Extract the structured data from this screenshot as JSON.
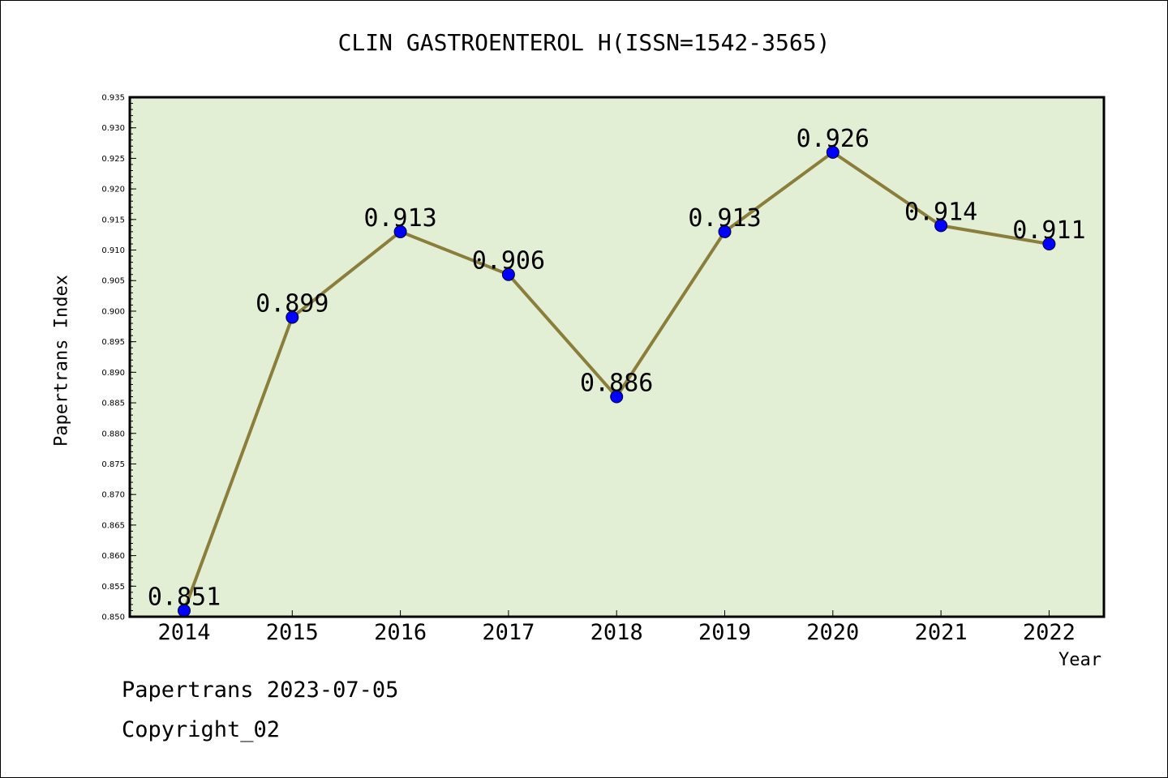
{
  "header": {
    "title": "CLIN GASTROENTEROL H(ISSN=1542-3565)"
  },
  "footer": {
    "line1": "Papertrans 2023-07-05",
    "line2": "Copyright_02"
  },
  "colors": {
    "plot_bg": "#e2efd5",
    "line": "#8b7d3a",
    "marker": "#0000ff",
    "frame": "#000000"
  },
  "chart_data": {
    "type": "line",
    "title": "CLIN GASTROENTEROL H(ISSN=1542-3565)",
    "xlabel": "Year",
    "ylabel": "Papertrans Index",
    "categories": [
      "2014",
      "2015",
      "2016",
      "2017",
      "2018",
      "2019",
      "2020",
      "2021",
      "2022"
    ],
    "values": [
      0.851,
      0.899,
      0.913,
      0.906,
      0.886,
      0.913,
      0.926,
      0.914,
      0.911
    ],
    "data_labels": [
      "0.851",
      "0.899",
      "0.913",
      "0.906",
      "0.886",
      "0.913",
      "0.926",
      "0.914",
      "0.911"
    ],
    "ylim": [
      0.85,
      0.935
    ],
    "yticks": [
      "0.850",
      "0.855",
      "0.860",
      "0.865",
      "0.870",
      "0.875",
      "0.880",
      "0.885",
      "0.890",
      "0.895",
      "0.900",
      "0.905",
      "0.910",
      "0.915",
      "0.920",
      "0.925",
      "0.930",
      "0.935"
    ],
    "grid": false,
    "legend": "none"
  }
}
